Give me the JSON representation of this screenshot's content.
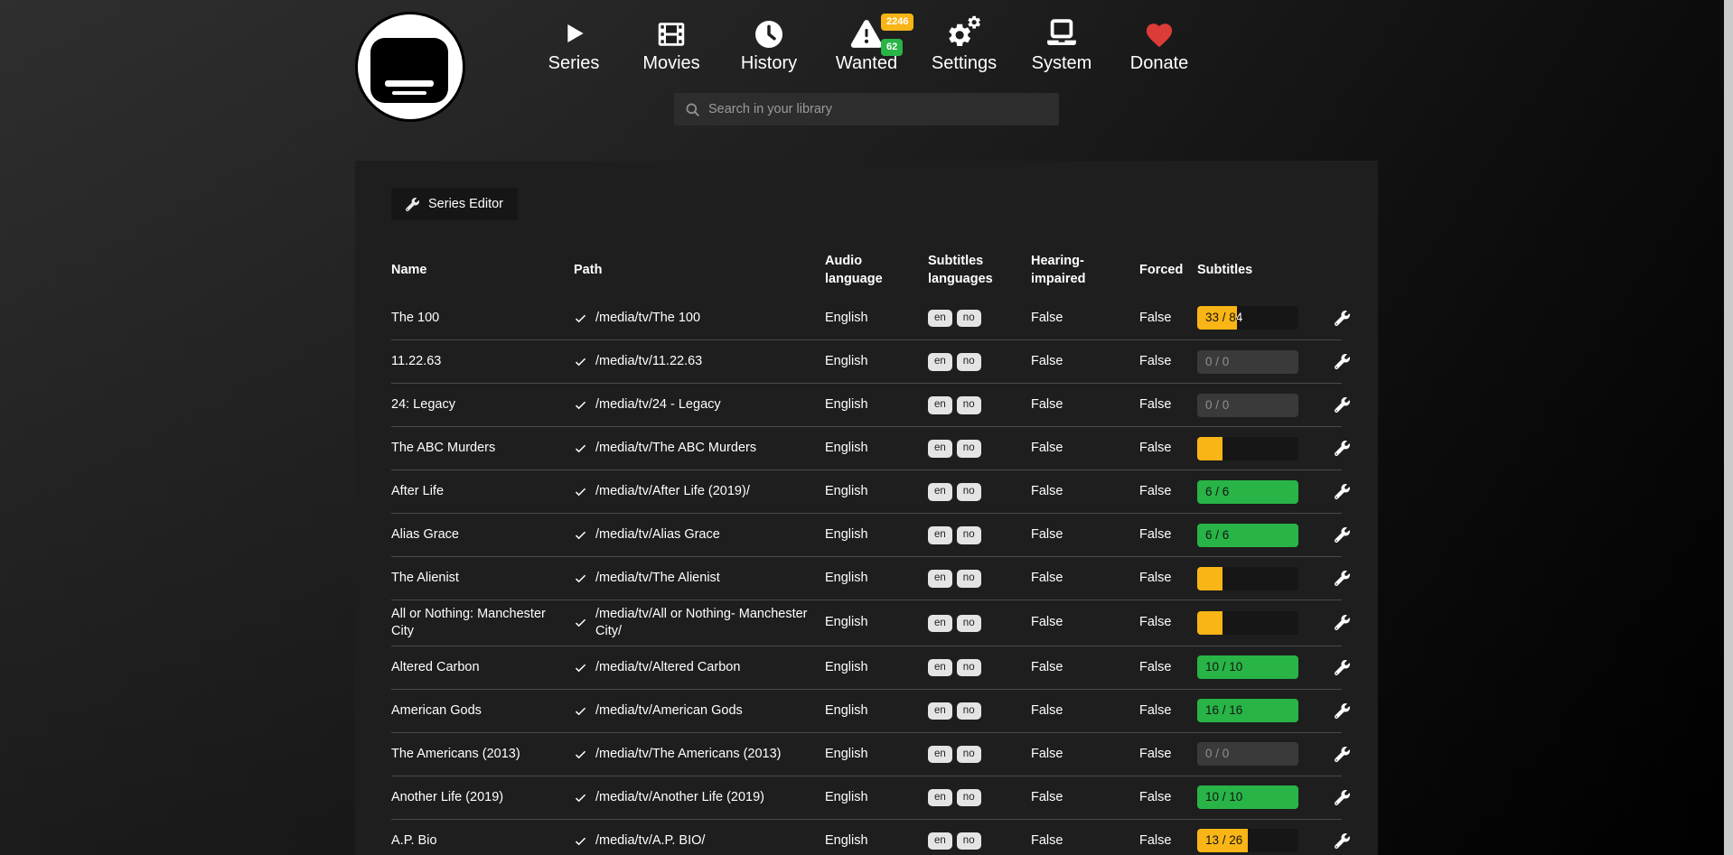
{
  "nav": {
    "items": [
      {
        "label": "Series",
        "icon": "play-icon"
      },
      {
        "label": "Movies",
        "icon": "film-icon"
      },
      {
        "label": "History",
        "icon": "clock-icon"
      },
      {
        "label": "Wanted",
        "icon": "warning-icon"
      },
      {
        "label": "Settings",
        "icon": "gears-icon"
      },
      {
        "label": "System",
        "icon": "laptop-icon"
      },
      {
        "label": "Donate",
        "icon": "heart-icon"
      }
    ],
    "wanted_badges": {
      "count_primary": "2246",
      "count_secondary": "62"
    }
  },
  "search": {
    "placeholder": "Search in your library"
  },
  "toolbar": {
    "series_editor_label": "Series Editor"
  },
  "table": {
    "headers": [
      "Name",
      "Path",
      "Audio language",
      "Subtitles languages",
      "Hearing-impaired",
      "Forced",
      "Subtitles"
    ],
    "rows": [
      {
        "name": "The 100",
        "path": "/media/tv/The 100",
        "audio": "English",
        "languages": [
          "en",
          "no"
        ],
        "hearing_impaired": "False",
        "forced": "False",
        "subtitles": {
          "label": "33 / 84",
          "percent": 39,
          "state": "warning"
        }
      },
      {
        "name": "11.22.63",
        "path": "/media/tv/11.22.63",
        "audio": "English",
        "languages": [
          "en",
          "no"
        ],
        "hearing_impaired": "False",
        "forced": "False",
        "subtitles": {
          "label": "0 / 0",
          "percent": 0,
          "state": "empty"
        }
      },
      {
        "name": "24: Legacy",
        "path": "/media/tv/24 - Legacy",
        "audio": "English",
        "languages": [
          "en",
          "no"
        ],
        "hearing_impaired": "False",
        "forced": "False",
        "subtitles": {
          "label": "0 / 0",
          "percent": 0,
          "state": "empty"
        }
      },
      {
        "name": "The ABC Murders",
        "path": "/media/tv/The ABC Murders",
        "audio": "English",
        "languages": [
          "en",
          "no"
        ],
        "hearing_impaired": "False",
        "forced": "False",
        "subtitles": {
          "label": "",
          "percent": 25,
          "state": "warning"
        }
      },
      {
        "name": "After Life",
        "path": "/media/tv/After Life (2019)/",
        "audio": "English",
        "languages": [
          "en",
          "no"
        ],
        "hearing_impaired": "False",
        "forced": "False",
        "subtitles": {
          "label": "6 / 6",
          "percent": 100,
          "state": "success"
        }
      },
      {
        "name": "Alias Grace",
        "path": "/media/tv/Alias Grace",
        "audio": "English",
        "languages": [
          "en",
          "no"
        ],
        "hearing_impaired": "False",
        "forced": "False",
        "subtitles": {
          "label": "6 / 6",
          "percent": 100,
          "state": "success"
        }
      },
      {
        "name": "The Alienist",
        "path": "/media/tv/The Alienist",
        "audio": "English",
        "languages": [
          "en",
          "no"
        ],
        "hearing_impaired": "False",
        "forced": "False",
        "subtitles": {
          "label": "",
          "percent": 25,
          "state": "warning"
        }
      },
      {
        "name": "All or Nothing: Manchester City",
        "path": "/media/tv/All or Nothing- Manchester City/",
        "audio": "English",
        "languages": [
          "en",
          "no"
        ],
        "hearing_impaired": "False",
        "forced": "False",
        "subtitles": {
          "label": "",
          "percent": 25,
          "state": "warning"
        }
      },
      {
        "name": "Altered Carbon",
        "path": "/media/tv/Altered Carbon",
        "audio": "English",
        "languages": [
          "en",
          "no"
        ],
        "hearing_impaired": "False",
        "forced": "False",
        "subtitles": {
          "label": "10 / 10",
          "percent": 100,
          "state": "success"
        }
      },
      {
        "name": "American Gods",
        "path": "/media/tv/American Gods",
        "audio": "English",
        "languages": [
          "en",
          "no"
        ],
        "hearing_impaired": "False",
        "forced": "False",
        "subtitles": {
          "label": "16 / 16",
          "percent": 100,
          "state": "success"
        }
      },
      {
        "name": "The Americans (2013)",
        "path": "/media/tv/The Americans (2013)",
        "audio": "English",
        "languages": [
          "en",
          "no"
        ],
        "hearing_impaired": "False",
        "forced": "False",
        "subtitles": {
          "label": "0 / 0",
          "percent": 0,
          "state": "empty"
        }
      },
      {
        "name": "Another Life (2019)",
        "path": "/media/tv/Another Life (2019)",
        "audio": "English",
        "languages": [
          "en",
          "no"
        ],
        "hearing_impaired": "False",
        "forced": "False",
        "subtitles": {
          "label": "10 / 10",
          "percent": 100,
          "state": "success"
        }
      },
      {
        "name": "A.P. Bio",
        "path": "/media/tv/A.P. BIO/",
        "audio": "English",
        "languages": [
          "en",
          "no"
        ],
        "hearing_impaired": "False",
        "forced": "False",
        "subtitles": {
          "label": "13 / 26",
          "percent": 50,
          "state": "warning"
        }
      }
    ]
  },
  "colors": {
    "accent_orange": "#f9b515",
    "accent_green": "#28b446",
    "heart_red": "#dc3c37",
    "language_badge_bg": "#e4e4e4",
    "panel_bg": "#1e1e1e",
    "empty_bar_bg": "#3a3a3a"
  }
}
